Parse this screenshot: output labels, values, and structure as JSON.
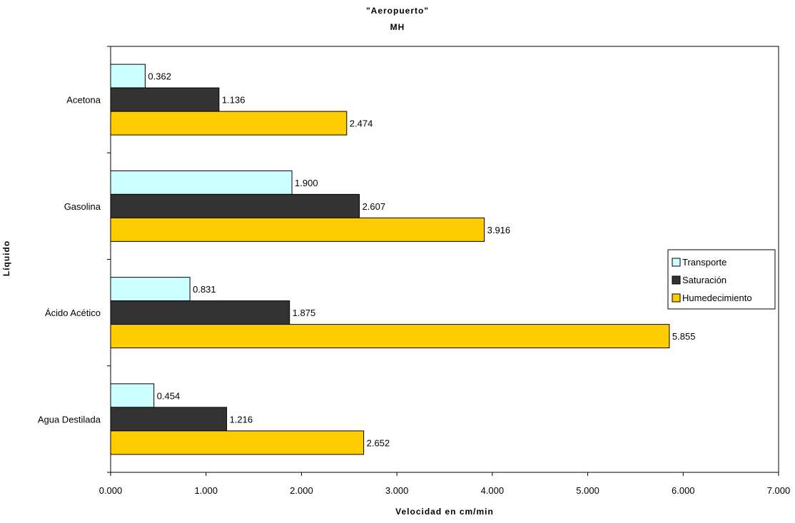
{
  "chart_data": {
    "type": "bar",
    "orientation": "horizontal",
    "title": "\"Aeropuerto\"",
    "subtitle": "MH",
    "xlabel": "Velocidad en cm/min",
    "ylabel": "Líquido",
    "xlim": [
      0,
      7
    ],
    "x_ticks": [
      "0.000",
      "1.000",
      "2.000",
      "3.000",
      "4.000",
      "5.000",
      "6.000",
      "7.000"
    ],
    "categories": [
      "Acetona",
      "Gasolina",
      "Ácido Acético",
      "Agua Destilada"
    ],
    "series": [
      {
        "name": "Transporte",
        "color": "#ccffff",
        "values": [
          0.362,
          1.9,
          0.831,
          0.454
        ],
        "labels": [
          "0.362",
          "1.900",
          "0.831",
          "0.454"
        ]
      },
      {
        "name": "Saturación",
        "color": "#333333",
        "values": [
          1.136,
          2.607,
          1.875,
          1.216
        ],
        "labels": [
          "1.136",
          "2.607",
          "1.875",
          "1.216"
        ]
      },
      {
        "name": "Humedecimiento",
        "color": "#ffcc00",
        "values": [
          2.474,
          3.916,
          5.855,
          2.652
        ],
        "labels": [
          "2.474",
          "3.916",
          "5.855",
          "2.652"
        ]
      }
    ],
    "grid": false,
    "legend_position": "right"
  }
}
